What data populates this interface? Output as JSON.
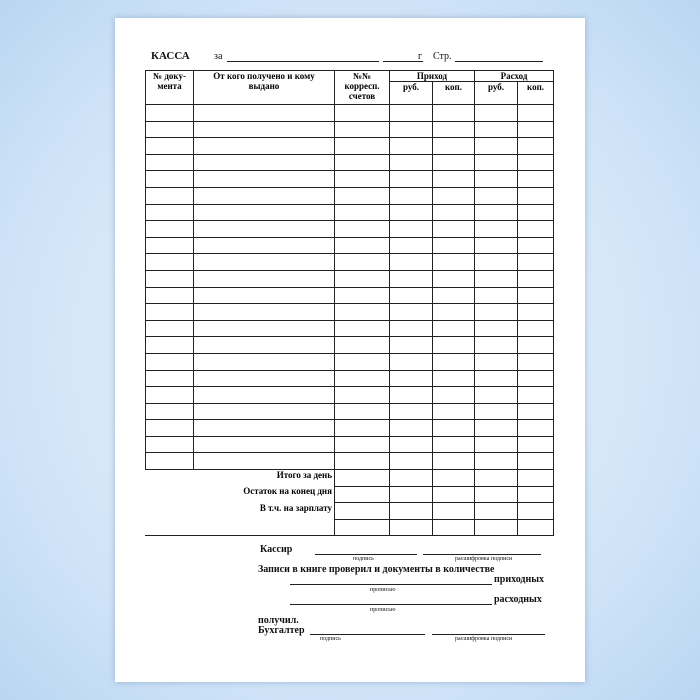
{
  "header": {
    "title": "КАССА",
    "za": "за",
    "year": "г",
    "page": "Стр."
  },
  "table": {
    "col_doc": "№ документа",
    "col_doc_1": "№ доку-",
    "col_doc_2": "мента",
    "col_from": "От кого получено и кому выдано",
    "col_from_1": "От кого получено и кому",
    "col_from_2": "выдано",
    "col_acc_1": "№№",
    "col_acc_2": "корресп.",
    "col_acc_3": "счетов",
    "income": "Приход",
    "expense": "Расход",
    "rub": "руб.",
    "kop": "коп.",
    "row_count": 22,
    "footer": [
      "Итого за день",
      "Остаток на конец дня",
      "В т.ч. на зарплату",
      ""
    ]
  },
  "signatures": {
    "cashier": "Кассир",
    "signature": "подпись",
    "decoding": "расшифровка подписи",
    "checked": "Записи в книге проверил и документы в количестве",
    "incoming": "приходных",
    "outgoing": "расходных",
    "in_words": "прописью",
    "received": "получил.",
    "accountant": "Бухгалтер"
  }
}
